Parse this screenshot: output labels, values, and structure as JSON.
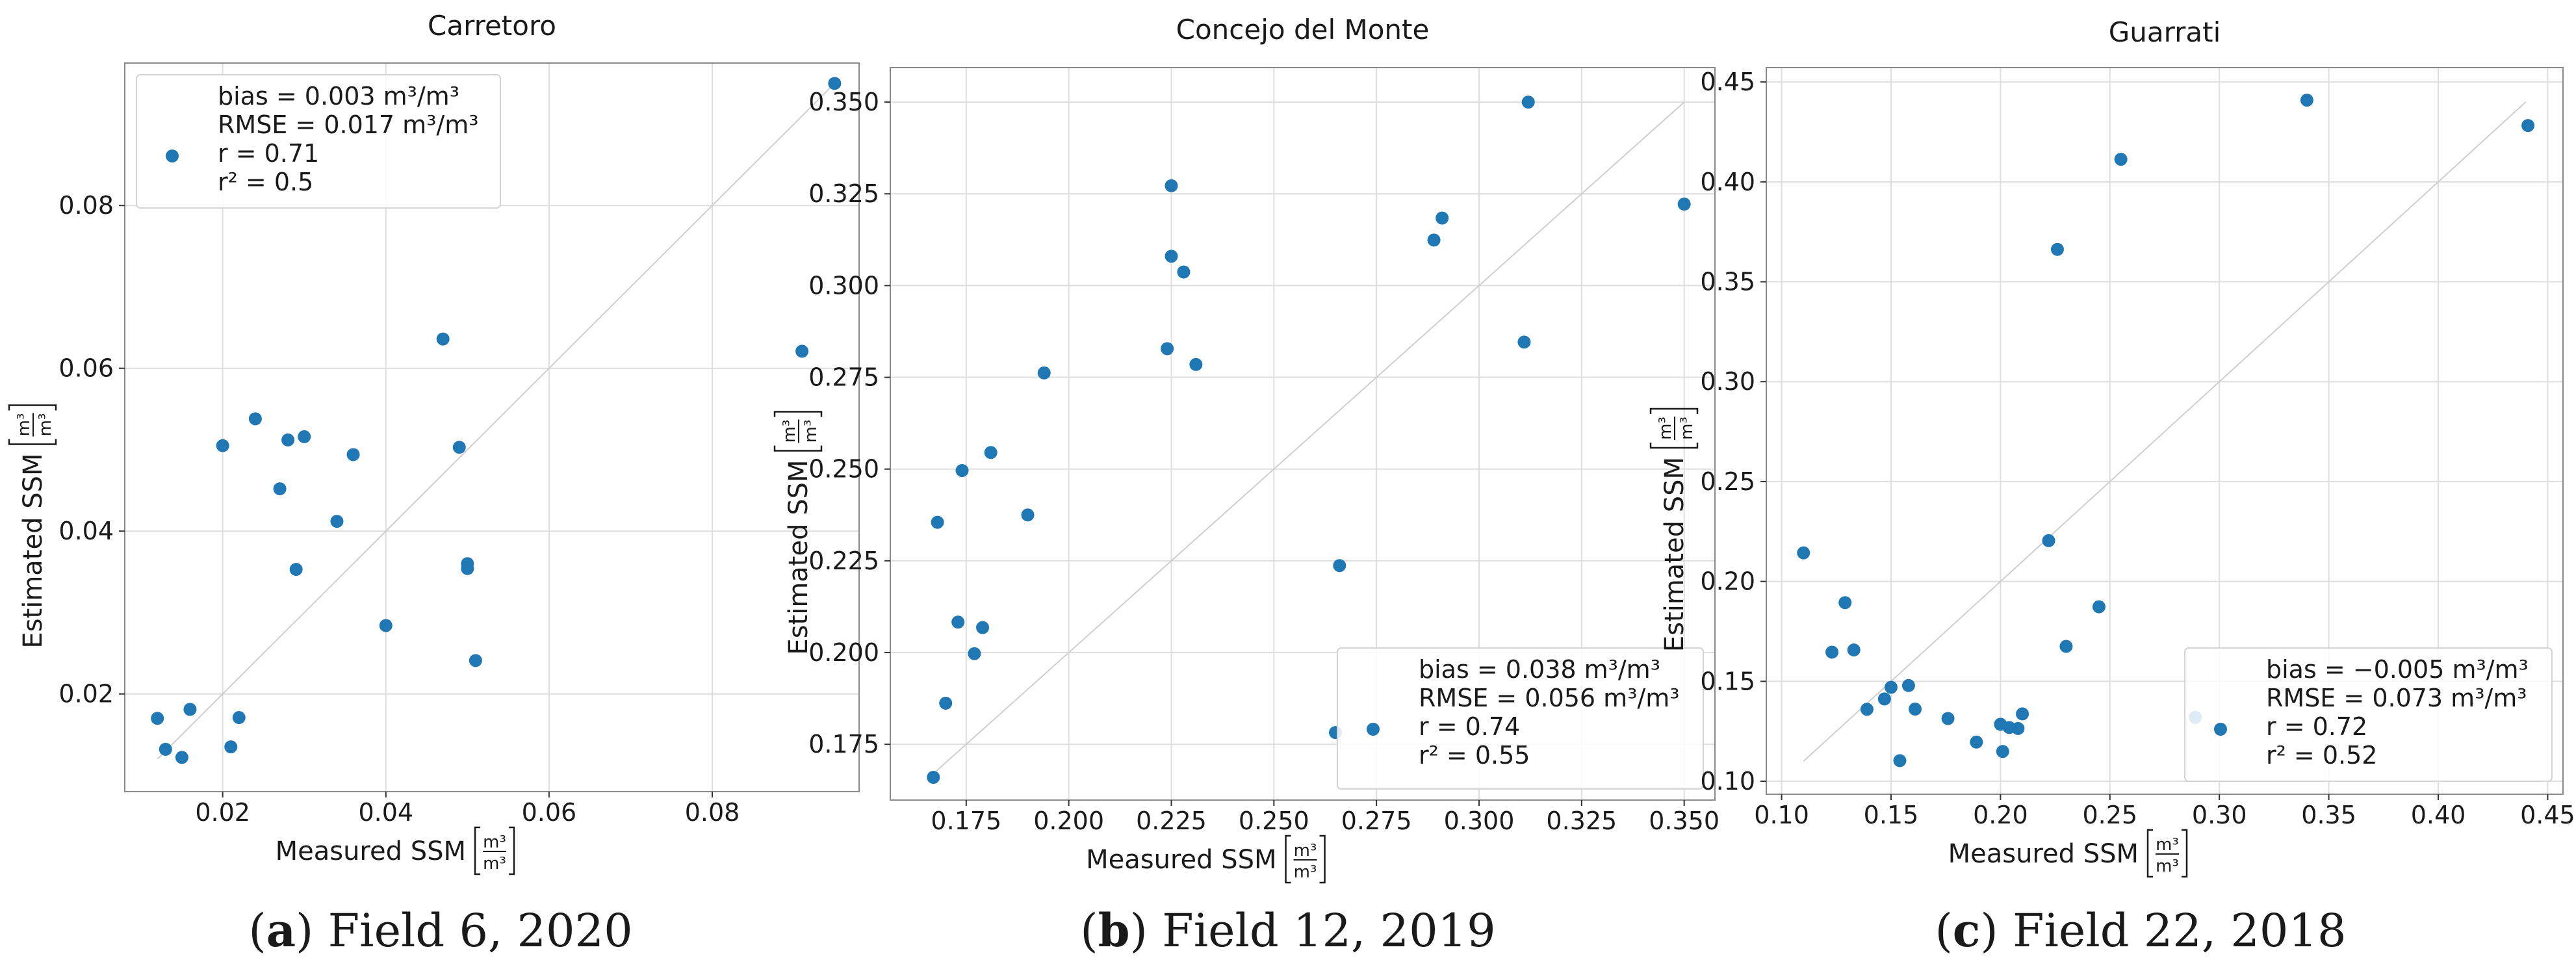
{
  "chart_data": [
    {
      "type": "scatter",
      "title": "Carretoro",
      "xlabel": "Measured SSM",
      "ylabel": "Estimated SSM",
      "unit_num": "m³",
      "unit_den": "m³",
      "xlim": [
        0.008,
        0.098
      ],
      "ylim": [
        0.008,
        0.0975
      ],
      "xticks": [
        0.02,
        0.04,
        0.06,
        0.08
      ],
      "xtick_labels": [
        "0.02",
        "0.04",
        "0.06",
        "0.08"
      ],
      "yticks": [
        0.02,
        0.04,
        0.06,
        0.08
      ],
      "ytick_labels": [
        "0.02",
        "0.04",
        "0.06",
        "0.08"
      ],
      "grid": true,
      "legend_position": "top-left",
      "stats": {
        "bias": "bias = 0.003 m³/m³",
        "rmse": "RMSE = 0.017 m³/m³",
        "r": "r = 0.71",
        "r2": "r² = 0.5"
      },
      "identity_line": [
        0.012,
        0.095
      ],
      "caption_letter": "a",
      "caption_text": "Field 6, 2020",
      "x": [
        0.012,
        0.013,
        0.015,
        0.016,
        0.02,
        0.021,
        0.022,
        0.024,
        0.027,
        0.028,
        0.029,
        0.03,
        0.034,
        0.036,
        0.04,
        0.047,
        0.049,
        0.05,
        0.05,
        0.051,
        0.091,
        0.095
      ],
      "y": [
        0.017,
        0.0132,
        0.0122,
        0.0181,
        0.0505,
        0.0135,
        0.0171,
        0.0538,
        0.0452,
        0.0512,
        0.0353,
        0.0516,
        0.0412,
        0.0494,
        0.0284,
        0.0636,
        0.0503,
        0.036,
        0.0354,
        0.0241,
        0.0621,
        0.095
      ]
    },
    {
      "type": "scatter",
      "title": "Concejo del Monte",
      "xlabel": "Measured SSM",
      "ylabel": "Estimated SSM",
      "unit_num": "m³",
      "unit_den": "m³",
      "xlim": [
        0.1565,
        0.3575
      ],
      "ylim": [
        0.1598,
        0.3594
      ],
      "xticks": [
        0.175,
        0.2,
        0.225,
        0.25,
        0.275,
        0.3,
        0.325,
        0.35
      ],
      "xtick_labels": [
        "0.175",
        "0.200",
        "0.225",
        "0.250",
        "0.275",
        "0.300",
        "0.325",
        "0.350"
      ],
      "yticks": [
        0.175,
        0.2,
        0.225,
        0.25,
        0.275,
        0.3,
        0.325,
        0.35
      ],
      "ytick_labels": [
        "0.175",
        "0.200",
        "0.225",
        "0.250",
        "0.275",
        "0.300",
        "0.325",
        "0.350"
      ],
      "grid": true,
      "legend_position": "bottom-right",
      "stats": {
        "bias": "bias = 0.038 m³/m³",
        "rmse": "RMSE = 0.056 m³/m³",
        "r": "r = 0.74",
        "r2": "r² = 0.55"
      },
      "identity_line": [
        0.166,
        0.35
      ],
      "caption_letter": "b",
      "caption_text": "Field 12, 2019",
      "x": [
        0.167,
        0.168,
        0.17,
        0.173,
        0.174,
        0.177,
        0.179,
        0.181,
        0.19,
        0.194,
        0.224,
        0.225,
        0.225,
        0.228,
        0.231,
        0.265,
        0.266,
        0.289,
        0.291,
        0.311,
        0.312,
        0.35
      ],
      "y": [
        0.166,
        0.2355,
        0.1862,
        0.2083,
        0.2496,
        0.1997,
        0.2068,
        0.2545,
        0.2375,
        0.2762,
        0.2828,
        0.308,
        0.3272,
        0.3037,
        0.2785,
        0.1782,
        0.2237,
        0.3124,
        0.3184,
        0.2846,
        0.35,
        0.3222
      ]
    },
    {
      "type": "scatter",
      "title": "Guarrati",
      "xlabel": "Measured SSM",
      "ylabel": "Estimated SSM",
      "unit_num": "m³",
      "unit_den": "m³",
      "xlim": [
        0.093,
        0.457
      ],
      "ylim": [
        0.0935,
        0.4572
      ],
      "xticks": [
        0.1,
        0.15,
        0.2,
        0.25,
        0.3,
        0.35,
        0.4,
        0.45
      ],
      "xtick_labels": [
        "0.10",
        "0.15",
        "0.20",
        "0.25",
        "0.30",
        "0.35",
        "0.40",
        "0.45"
      ],
      "yticks": [
        0.1,
        0.15,
        0.2,
        0.25,
        0.3,
        0.35,
        0.4,
        0.45
      ],
      "ytick_labels": [
        "0.10",
        "0.15",
        "0.20",
        "0.25",
        "0.30",
        "0.35",
        "0.40",
        "0.45"
      ],
      "grid": true,
      "legend_position": "bottom-right",
      "stats": {
        "bias": "bias = −0.005 m³/m³",
        "rmse": "RMSE = 0.073 m³/m³",
        "r": "r = 0.72",
        "r2": "r² = 0.52"
      },
      "identity_line": [
        0.11,
        0.44
      ],
      "caption_letter": "c",
      "caption_text": "Field 22, 2018",
      "x": [
        0.11,
        0.123,
        0.129,
        0.133,
        0.139,
        0.147,
        0.15,
        0.154,
        0.158,
        0.161,
        0.176,
        0.189,
        0.2,
        0.201,
        0.204,
        0.208,
        0.21,
        0.222,
        0.226,
        0.23,
        0.245,
        0.255,
        0.289,
        0.34,
        0.441
      ],
      "y": [
        0.2143,
        0.1646,
        0.1894,
        0.1657,
        0.136,
        0.1412,
        0.147,
        0.1103,
        0.1479,
        0.1361,
        0.1314,
        0.1196,
        0.1285,
        0.1149,
        0.1269,
        0.1264,
        0.1337,
        0.2204,
        0.3662,
        0.1675,
        0.1873,
        0.4113,
        0.132,
        0.4409,
        0.4282
      ]
    }
  ]
}
